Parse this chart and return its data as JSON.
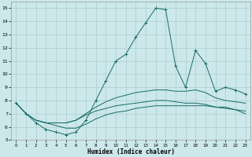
{
  "xlabel": "Humidex (Indice chaleur)",
  "background_color": "#cce8ea",
  "grid_color": "#aaccce",
  "line_color": "#1a6b6b",
  "xlim": [
    -0.5,
    23.5
  ],
  "ylim": [
    5,
    15.5
  ],
  "xticks": [
    0,
    1,
    2,
    3,
    4,
    5,
    6,
    7,
    8,
    9,
    10,
    11,
    12,
    13,
    14,
    15,
    16,
    17,
    18,
    19,
    20,
    21,
    22,
    23
  ],
  "yticks": [
    5,
    6,
    7,
    8,
    9,
    10,
    11,
    12,
    13,
    14,
    15
  ],
  "line1_x": [
    0,
    1,
    2,
    3,
    4,
    5,
    6,
    7,
    8,
    9,
    10,
    11,
    12,
    13,
    14,
    15,
    16,
    17,
    18,
    19,
    20,
    21,
    22,
    23
  ],
  "line1_y": [
    7.8,
    7.0,
    6.3,
    5.8,
    5.6,
    5.4,
    5.6,
    6.5,
    8.0,
    9.5,
    11.0,
    11.5,
    12.8,
    13.9,
    15.0,
    14.9,
    10.6,
    9.0,
    11.8,
    10.8,
    8.7,
    9.0,
    8.8,
    8.5
  ],
  "line2_x": [
    0,
    1,
    2,
    3,
    4,
    5,
    6,
    7,
    8,
    9,
    10,
    11,
    12,
    13,
    14,
    15,
    16,
    17,
    18,
    19,
    20,
    21,
    22,
    23
  ],
  "line2_y": [
    7.8,
    7.0,
    6.5,
    6.3,
    6.3,
    6.3,
    6.5,
    7.0,
    7.5,
    7.9,
    8.2,
    8.4,
    8.6,
    8.7,
    8.8,
    8.8,
    8.7,
    8.7,
    8.8,
    8.6,
    8.2,
    8.0,
    7.9,
    7.8
  ],
  "line3_x": [
    0,
    1,
    2,
    3,
    4,
    5,
    6,
    7,
    8,
    9,
    10,
    11,
    12,
    13,
    14,
    15,
    16,
    17,
    18,
    19,
    20,
    21,
    22,
    23
  ],
  "line3_y": [
    7.8,
    7.0,
    6.5,
    6.3,
    6.3,
    6.3,
    6.5,
    6.9,
    7.2,
    7.4,
    7.6,
    7.7,
    7.8,
    7.9,
    8.0,
    8.0,
    7.9,
    7.8,
    7.8,
    7.7,
    7.5,
    7.4,
    7.3,
    7.2
  ],
  "line4_x": [
    2,
    3,
    4,
    5,
    6,
    7,
    8,
    9,
    10,
    11,
    12,
    13,
    14,
    15,
    16,
    17,
    18,
    19,
    20,
    21,
    22,
    23
  ],
  "line4_y": [
    6.5,
    6.3,
    6.1,
    5.9,
    5.9,
    6.2,
    6.6,
    6.9,
    7.1,
    7.2,
    7.4,
    7.5,
    7.6,
    7.6,
    7.6,
    7.6,
    7.6,
    7.6,
    7.5,
    7.5,
    7.3,
    7.0
  ]
}
